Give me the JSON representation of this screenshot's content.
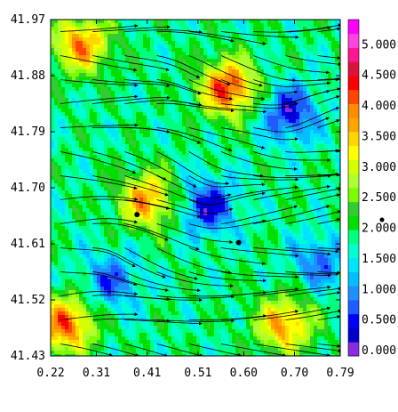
{
  "chart_data": {
    "type": "heatmap",
    "subtype": "filled-contour with streamlines",
    "title": "",
    "xlabel": "",
    "ylabel": "",
    "xlim": [
      0.22,
      0.79
    ],
    "ylim": [
      41.43,
      41.97
    ],
    "x_ticks": [
      "0.22",
      "0.31",
      "0.41",
      "0.51",
      "0.60",
      "0.70",
      "0.79"
    ],
    "y_ticks": [
      "41.43",
      "41.52",
      "41.61",
      "41.70",
      "41.79",
      "41.88",
      "41.97"
    ],
    "colorbar": {
      "range": [
        0.0,
        5.5
      ],
      "step": 0.25,
      "labels": [
        "0.000",
        "0.500",
        "1.000",
        "1.500",
        "2.000",
        "2.500",
        "3.000",
        "3.500",
        "4.000",
        "4.500",
        "5.000"
      ],
      "colors": [
        "#8a2be2",
        "#0000cd",
        "#0000ff",
        "#1e5cff",
        "#1e90ff",
        "#00bfff",
        "#00e5ff",
        "#00ffd0",
        "#00ff7f",
        "#00e000",
        "#32cd32",
        "#7cfc00",
        "#adff2f",
        "#d4ff00",
        "#ffff00",
        "#ffd700",
        "#ffa500",
        "#ff8c00",
        "#ff4500",
        "#ff0000",
        "#dc143c",
        "#ff1493",
        "#ff44dd",
        "#ff00ff"
      ]
    },
    "field": {
      "background_value": 2.1,
      "features": [
        {
          "x": 0.25,
          "y": 41.48,
          "value": 4.6,
          "note": "red maximum, lower-left"
        },
        {
          "x": 0.28,
          "y": 41.93,
          "value": 4.3,
          "note": "red band, upper-left"
        },
        {
          "x": 0.41,
          "y": 41.68,
          "value": 4.2,
          "note": "red ridge, center-left"
        },
        {
          "x": 0.57,
          "y": 41.86,
          "value": 4.8,
          "note": "red spot, upper-center"
        },
        {
          "x": 0.68,
          "y": 41.48,
          "value": 4.2,
          "note": "red band, lower-right"
        },
        {
          "x": 0.53,
          "y": 41.67,
          "value": 0.5,
          "note": "blue trough, center"
        },
        {
          "x": 0.69,
          "y": 41.82,
          "value": 0.5,
          "note": "blue trough, upper-right"
        },
        {
          "x": 0.34,
          "y": 41.55,
          "value": 0.9,
          "note": "cyan/blue, lower-left"
        },
        {
          "x": 0.75,
          "y": 41.58,
          "value": 1.0,
          "note": "blue patches, right"
        }
      ]
    },
    "markers": [
      {
        "x": 0.39,
        "y": 41.657
      },
      {
        "x": 0.59,
        "y": 41.612
      }
    ]
  }
}
